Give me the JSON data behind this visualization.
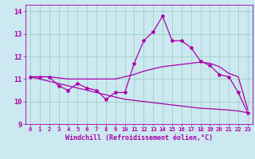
{
  "xlabel": "Windchill (Refroidissement éolien,°C)",
  "bg_color": "#cce8f0",
  "line_color": "#aa00aa",
  "hours": [
    0,
    1,
    2,
    3,
    4,
    5,
    6,
    7,
    8,
    9,
    10,
    11,
    12,
    13,
    14,
    15,
    16,
    17,
    18,
    19,
    20,
    21,
    22,
    23
  ],
  "main_data": [
    11.1,
    11.1,
    11.1,
    10.7,
    10.5,
    10.8,
    10.6,
    10.5,
    10.1,
    10.4,
    10.4,
    11.7,
    12.7,
    13.1,
    13.8,
    12.7,
    12.7,
    12.4,
    11.8,
    11.6,
    11.2,
    11.1,
    10.4,
    9.5
  ],
  "line_straight": [
    11.1,
    11.0,
    10.9,
    10.8,
    10.7,
    10.6,
    10.5,
    10.4,
    10.3,
    10.2,
    10.1,
    10.05,
    10.0,
    9.95,
    9.9,
    9.85,
    9.8,
    9.75,
    9.7,
    9.68,
    9.65,
    9.62,
    9.58,
    9.5
  ],
  "line_upper": [
    11.1,
    11.1,
    11.1,
    11.05,
    11.0,
    11.0,
    11.0,
    11.0,
    11.0,
    11.0,
    11.1,
    11.2,
    11.35,
    11.45,
    11.55,
    11.6,
    11.65,
    11.7,
    11.75,
    11.7,
    11.55,
    11.25,
    11.1,
    9.65
  ],
  "xlim": [
    -0.5,
    23.5
  ],
  "ylim": [
    9.0,
    14.3
  ],
  "yticks": [
    9,
    10,
    11,
    12,
    13,
    14
  ],
  "grid_color": "#99ccbb",
  "label_fontsize": 6.0,
  "tick_fontsize": 5.2
}
